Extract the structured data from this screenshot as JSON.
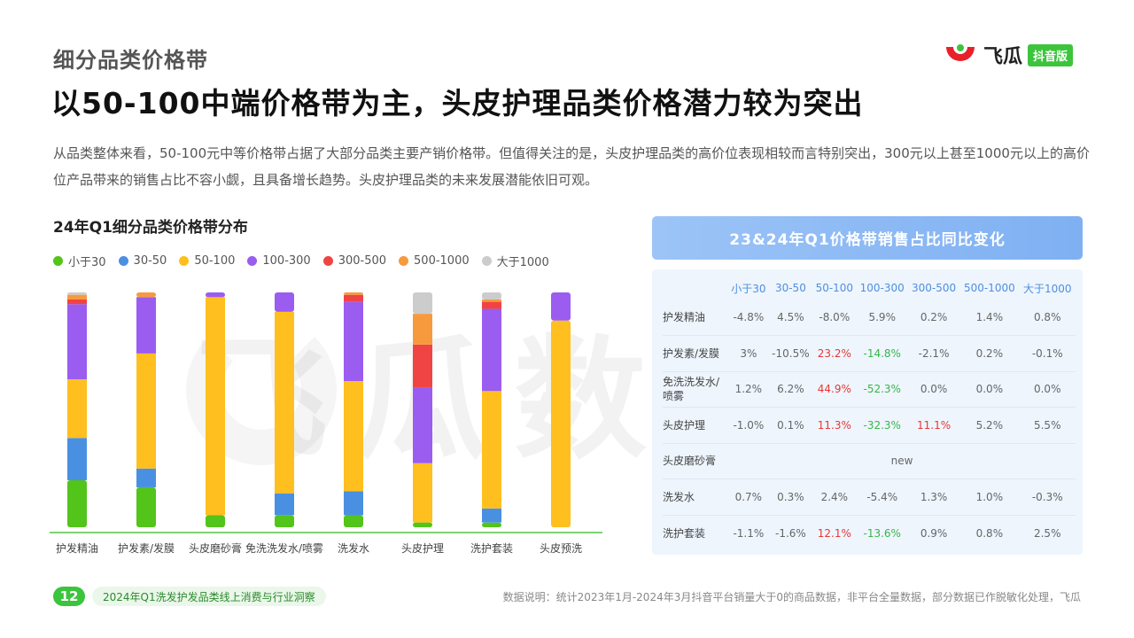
{
  "header": {
    "section_title": "细分品类价格带",
    "main_title": "以50-100中端价格带为主，头皮护理品类价格潜力较为突出",
    "logo_text": "飞瓜",
    "logo_badge": "抖音版"
  },
  "description": "从品类整体来看，50-100元中等价格带占据了大部分品类主要产销价格带。但值得关注的是，头皮护理品类的高价位表现相较而言特别突出，300元以上甚至1000元以上的高价位产品带来的销售占比不容小觑，且具备增长趋势。头皮护理品类的未来发展潜能依旧可观。",
  "watermark": "飞瓜数据",
  "chart_data": {
    "type": "bar",
    "stacked": true,
    "title": "24年Q1细分品类价格带分布",
    "categories": [
      "护发精油",
      "护发素/发膜",
      "头皮磨砂膏",
      "免洗洗发水/喷雾",
      "洗发水",
      "头皮护理",
      "洗护套装",
      "头皮预洗"
    ],
    "series": [
      {
        "name": "小于30",
        "color": "#52c41a",
        "values": [
          20,
          17,
          5,
          5,
          5,
          2,
          2,
          0
        ]
      },
      {
        "name": "30-50",
        "color": "#4a90e2",
        "values": [
          18,
          8,
          0,
          9,
          10,
          0,
          6,
          0
        ]
      },
      {
        "name": "50-100",
        "color": "#ffbf1f",
        "values": [
          25,
          49,
          91,
          75,
          46,
          25,
          50,
          88
        ]
      },
      {
        "name": "100-300",
        "color": "#9b5cf0",
        "values": [
          32,
          24,
          2,
          8,
          33,
          32,
          35,
          12
        ]
      },
      {
        "name": "300-500",
        "color": "#f04444",
        "values": [
          2,
          0,
          0,
          0,
          3,
          18,
          3,
          0
        ]
      },
      {
        "name": "500-1000",
        "color": "#f79a3e",
        "values": [
          2,
          2,
          0,
          0,
          1,
          13,
          1,
          0
        ]
      },
      {
        "name": "大于1000",
        "color": "#cccccc",
        "values": [
          1,
          0,
          0,
          0,
          0,
          9,
          3,
          0
        ]
      }
    ],
    "ylim": [
      0,
      100
    ]
  },
  "table": {
    "title": "23&24年Q1价格带销售占比同比变化",
    "columns": [
      "",
      "小于30",
      "30-50",
      "50-100",
      "100-300",
      "300-500",
      "500-1000",
      "大于1000"
    ],
    "rows": [
      {
        "label": "护发精油",
        "cells": [
          "-4.8%",
          "4.5%",
          "-8.0%",
          "5.9%",
          "0.2%",
          "1.4%",
          "0.8%"
        ],
        "styles": [
          "",
          "",
          "",
          "",
          "",
          "",
          ""
        ]
      },
      {
        "label": "护发素/发膜",
        "cells": [
          "3%",
          "-10.5%",
          "23.2%",
          "-14.8%",
          "-2.1%",
          "0.2%",
          "-0.1%"
        ],
        "styles": [
          "",
          "",
          "red",
          "green",
          "",
          "",
          ""
        ]
      },
      {
        "label": "免洗洗发水/喷雾",
        "cells": [
          "1.2%",
          "6.2%",
          "44.9%",
          "-52.3%",
          "0.0%",
          "0.0%",
          "0.0%"
        ],
        "styles": [
          "",
          "",
          "red",
          "green",
          "",
          "",
          ""
        ]
      },
      {
        "label": "头皮护理",
        "cells": [
          "-1.0%",
          "0.1%",
          "11.3%",
          "-32.3%",
          "11.1%",
          "5.2%",
          "5.5%"
        ],
        "styles": [
          "",
          "",
          "red",
          "green",
          "red",
          "",
          ""
        ]
      },
      {
        "label": "头皮磨砂膏",
        "cells": [
          "new"
        ],
        "merged": true
      },
      {
        "label": "洗发水",
        "cells": [
          "0.7%",
          "0.3%",
          "2.4%",
          "-5.4%",
          "1.3%",
          "1.0%",
          "-0.3%"
        ],
        "styles": [
          "",
          "",
          "",
          "",
          "",
          "",
          ""
        ]
      },
      {
        "label": "洗护套装",
        "cells": [
          "-1.1%",
          "-1.6%",
          "12.1%",
          "-13.6%",
          "0.9%",
          "0.8%",
          "2.5%"
        ],
        "styles": [
          "",
          "",
          "red",
          "green",
          "",
          "",
          ""
        ]
      }
    ]
  },
  "footer": {
    "page_number": "12",
    "report_title": "2024年Q1洗发护发品类线上消费与行业洞察",
    "note": "数据说明：统计2023年1月-2024年3月抖音平台销量大于0的商品数据，非平台全量数据，部分数据已作脱敏化处理，飞瓜"
  },
  "colors": {
    "brand_green": "#3dc43d",
    "table_header": "#8ab8f4",
    "positive": "#e53935",
    "negative": "#39b54a"
  }
}
